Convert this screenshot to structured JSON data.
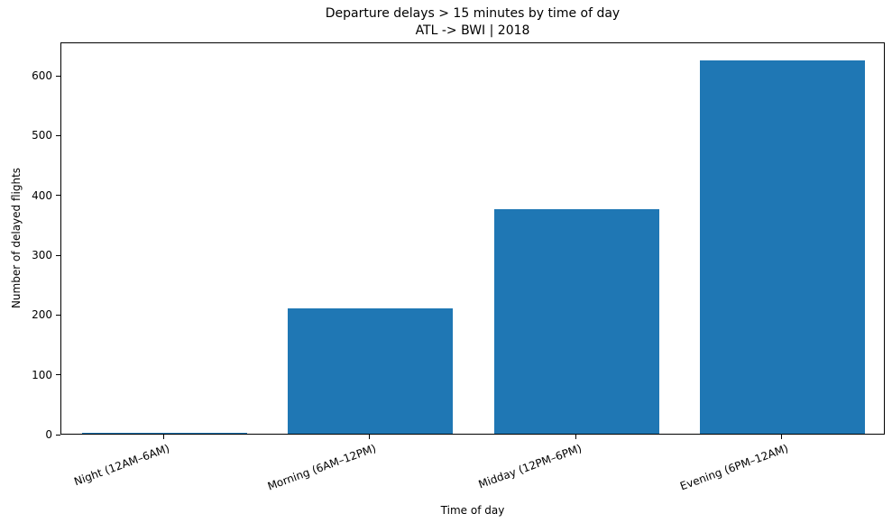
{
  "chart_data": {
    "type": "bar",
    "title": "Departure delays > 15 minutes by time of day",
    "subtitle": "ATL -> BWI | 2018",
    "xlabel": "Time of day",
    "ylabel": "Number of delayed flights",
    "categories": [
      "Night (12AM–6AM)",
      "Morning (6AM–12PM)",
      "Midday (12PM–6PM)",
      "Evening (6PM–12AM)"
    ],
    "values": [
      2,
      210,
      375,
      625
    ],
    "yticks": [
      0,
      100,
      200,
      300,
      400,
      500,
      600
    ],
    "ylim": [
      0,
      656
    ],
    "bar_color": "#1f77b4",
    "bar_width_fraction": 0.8,
    "x_tick_rotation_deg": 20,
    "grid": false,
    "legend": "none",
    "background_color": "#ffffff",
    "spine_color": "#000000"
  }
}
